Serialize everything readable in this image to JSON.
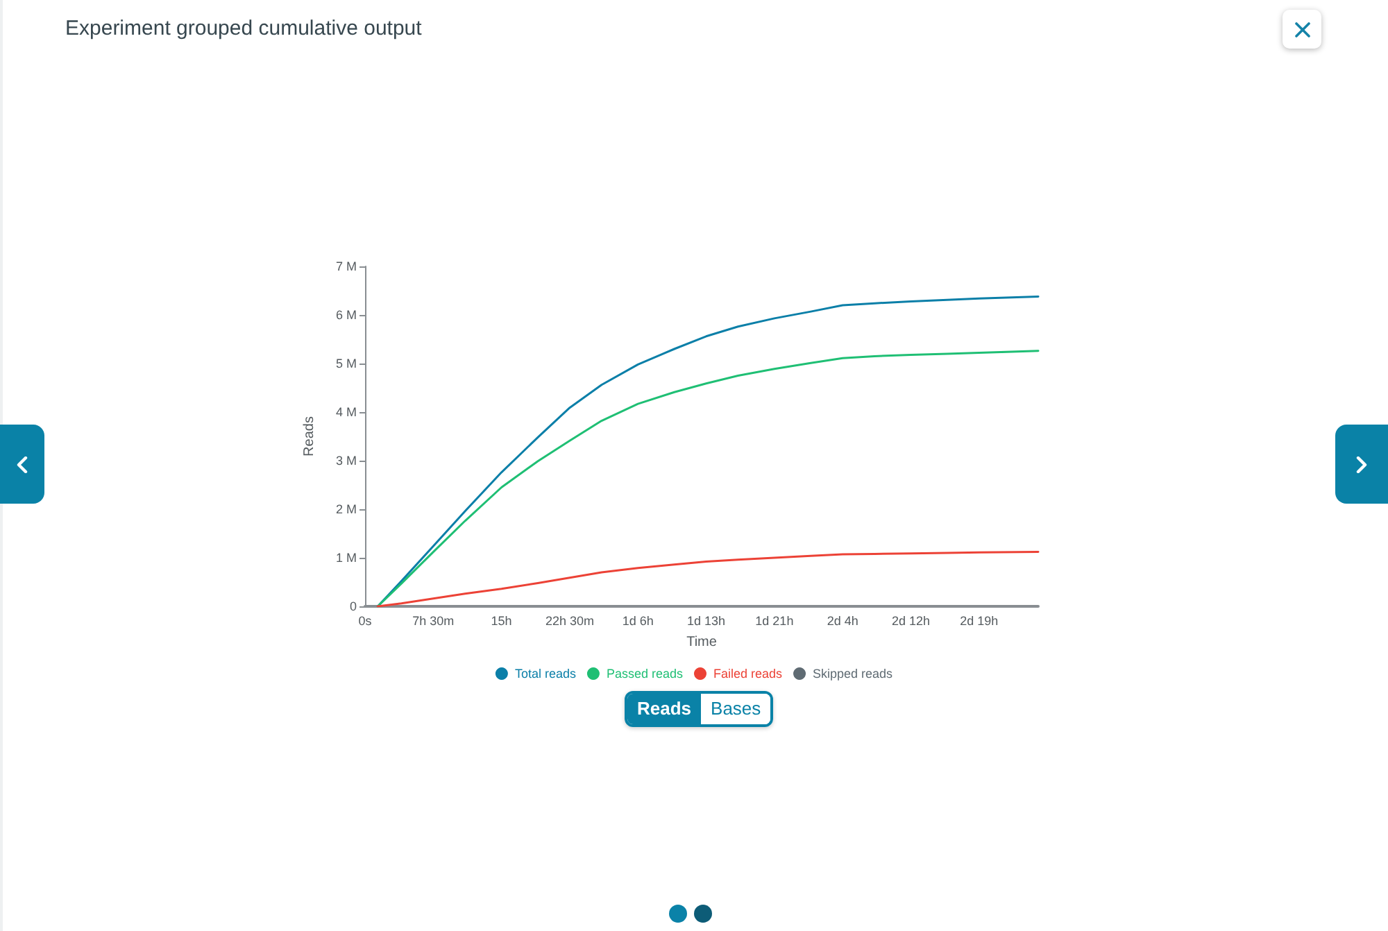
{
  "chart_data": {
    "type": "line",
    "title": "Experiment grouped cumulative output",
    "xlabel": "Time",
    "ylabel": "Reads",
    "x": [
      1.4,
      4,
      7.5,
      11,
      15,
      19,
      22.5,
      26,
      30,
      34,
      37.5,
      41,
      45,
      49,
      52.5,
      56,
      60,
      64,
      67.5,
      74
    ],
    "series": [
      {
        "name": "Total reads",
        "color": "#0b7fa8",
        "values": [
          0,
          520000,
          1240000,
          1960000,
          2760000,
          3480000,
          4090000,
          4560000,
          4980000,
          5300000,
          5560000,
          5760000,
          5930000,
          6070000,
          6200000,
          6240000,
          6280000,
          6310000,
          6340000,
          6380000
        ]
      },
      {
        "name": "Passed reads",
        "color": "#1fbf74",
        "values": [
          0,
          470000,
          1120000,
          1760000,
          2450000,
          2990000,
          3410000,
          3820000,
          4170000,
          4410000,
          4590000,
          4750000,
          4890000,
          5010000,
          5110000,
          5150000,
          5180000,
          5200000,
          5220000,
          5260000
        ]
      },
      {
        "name": "Failed reads",
        "color": "#ec4236",
        "values": [
          0,
          60000,
          160000,
          260000,
          360000,
          480000,
          590000,
          700000,
          790000,
          860000,
          920000,
          960000,
          1000000,
          1040000,
          1070000,
          1080000,
          1090000,
          1100000,
          1110000,
          1120000
        ]
      },
      {
        "name": "Skipped reads",
        "color": "#5f6b73",
        "values": [
          null,
          null,
          null,
          null,
          null,
          null,
          null,
          null,
          null,
          null,
          null,
          null,
          null,
          null,
          null,
          null,
          null,
          null,
          null,
          null
        ]
      }
    ],
    "xlim": [
      0,
      74
    ],
    "xticks": [
      {
        "value": 0,
        "label": "0s"
      },
      {
        "value": 7.5,
        "label": "7h 30m"
      },
      {
        "value": 15,
        "label": "15h"
      },
      {
        "value": 22.5,
        "label": "22h 30m"
      },
      {
        "value": 30,
        "label": "1d 6h"
      },
      {
        "value": 37.5,
        "label": "1d 13h"
      },
      {
        "value": 45,
        "label": "1d 21h"
      },
      {
        "value": 52.5,
        "label": "2d 4h"
      },
      {
        "value": 60,
        "label": "2d 12h"
      },
      {
        "value": 67.5,
        "label": "2d 19h"
      }
    ],
    "ylim": [
      0,
      7000000
    ],
    "yticks": [
      0,
      {
        "value": 1000000,
        "label": "1 M"
      },
      {
        "value": 2000000,
        "label": "2 M"
      },
      {
        "value": 3000000,
        "label": "3 M"
      },
      {
        "value": 4000000,
        "label": "4 M"
      },
      {
        "value": 5000000,
        "label": "5 M"
      },
      {
        "value": 6000000,
        "label": "6 M"
      },
      {
        "value": 7000000,
        "label": "7 M"
      }
    ],
    "grid": false,
    "legend": "bottom",
    "marker": "none",
    "line_style": "solid",
    "annotations": [
      "Reads",
      "Bases"
    ]
  }
}
